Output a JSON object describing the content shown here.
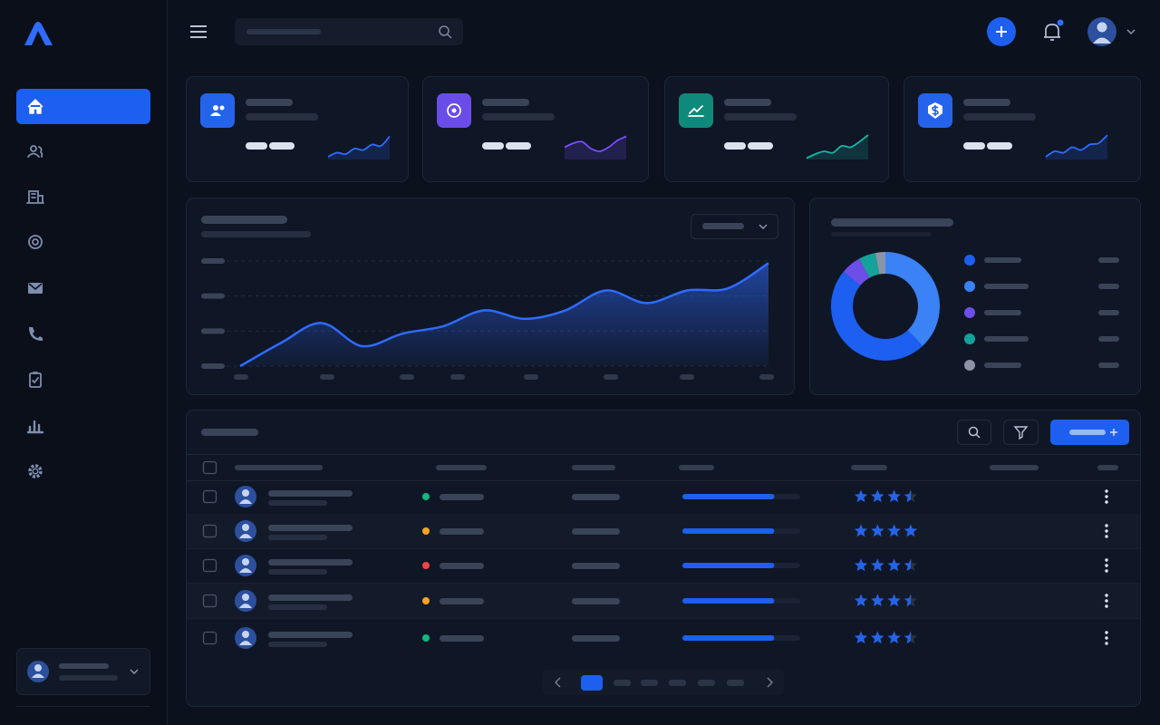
{
  "stat_cards": [
    {
      "icon_color": "#2563eb",
      "spark_color": "#2f6bff",
      "spark": [
        10,
        25,
        20,
        40,
        35,
        55,
        50,
        85
      ]
    },
    {
      "icon_color": "#6a4de8",
      "spark_color": "#7c4dff",
      "spark": [
        45,
        60,
        65,
        40,
        30,
        45,
        70,
        85
      ]
    },
    {
      "icon_color": "#0f8a7a",
      "spark_color": "#14b8a6",
      "spark": [
        5,
        20,
        30,
        25,
        50,
        45,
        65,
        90
      ]
    },
    {
      "icon_color": "#2563eb",
      "spark_color": "#2f6bff",
      "spark": [
        10,
        30,
        25,
        45,
        35,
        55,
        60,
        90
      ]
    }
  ],
  "area_chart": {
    "type": "area",
    "color": "#2f6bff",
    "values": [
      0,
      22,
      41,
      19,
      31,
      38,
      53,
      45,
      53,
      72,
      60,
      72,
      74,
      98
    ],
    "ylim": [
      0,
      100
    ],
    "yticks": [
      0,
      33.3,
      66.7,
      100
    ],
    "grid": true
  },
  "donut_chart": {
    "type": "pie",
    "values": [
      48,
      38,
      6,
      5,
      3
    ],
    "colors": [
      "#1d5ff0",
      "#3b82f6",
      "#6d4ee8",
      "#14a39a",
      "#8a94a6"
    ]
  },
  "table": {
    "rows": [
      {
        "status_color": "#10b981",
        "progress": 78,
        "rating": 3.5
      },
      {
        "status_color": "#f5a524",
        "progress": 78,
        "rating": 4
      },
      {
        "status_color": "#ef4444",
        "progress": 78,
        "rating": 3.5
      },
      {
        "status_color": "#f5a524",
        "progress": 78,
        "rating": 3.5
      },
      {
        "status_color": "#10b981",
        "progress": 78,
        "rating": 3.5
      }
    ]
  }
}
